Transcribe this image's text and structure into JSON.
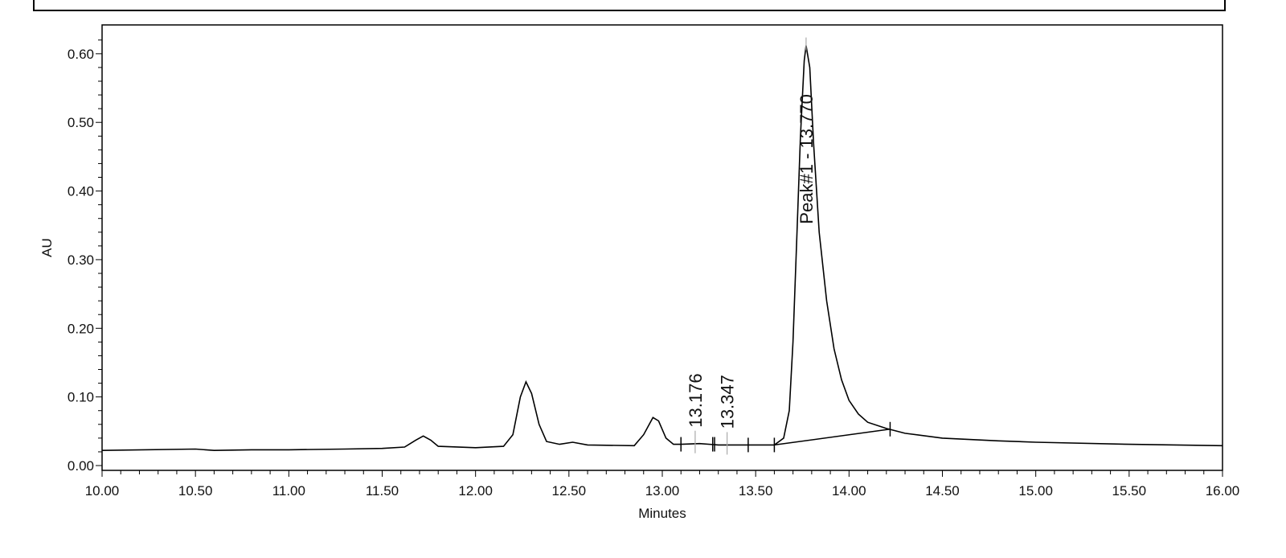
{
  "chart_data": {
    "type": "line",
    "xlabel": "Minutes",
    "ylabel": "AU",
    "xlim": [
      10,
      16
    ],
    "ylim": [
      -0.007,
      0.642
    ],
    "xticks": [
      {
        "value": 10,
        "label": "10.00"
      },
      {
        "value": 10.5,
        "label": "10.50"
      },
      {
        "value": 11,
        "label": "11.00"
      },
      {
        "value": 11.5,
        "label": "11.50"
      },
      {
        "value": 12,
        "label": "12.00"
      },
      {
        "value": 12.5,
        "label": "12.50"
      },
      {
        "value": 13,
        "label": "13.00"
      },
      {
        "value": 13.5,
        "label": "13.50"
      },
      {
        "value": 14,
        "label": "14.00"
      },
      {
        "value": 14.5,
        "label": "14.50"
      },
      {
        "value": 15,
        "label": "15.00"
      },
      {
        "value": 15.5,
        "label": "15.50"
      },
      {
        "value": 16,
        "label": "16.00"
      }
    ],
    "yticks": [
      {
        "value": 0,
        "label": "0.00"
      },
      {
        "value": 0.1,
        "label": "0.10"
      },
      {
        "value": 0.2,
        "label": "0.20"
      },
      {
        "value": 0.3,
        "label": "0.30"
      },
      {
        "value": 0.4,
        "label": "0.40"
      },
      {
        "value": 0.5,
        "label": "0.50"
      },
      {
        "value": 0.6,
        "label": "0.60"
      }
    ],
    "xminorticks": [
      10.1,
      10.2,
      10.3,
      10.4,
      10.6,
      10.7,
      10.8,
      10.9,
      11.1,
      11.2,
      11.3,
      11.4,
      11.6,
      11.7,
      11.8,
      11.9,
      12.1,
      12.2,
      12.3,
      12.4,
      12.6,
      12.7,
      12.8,
      12.9,
      13.1,
      13.2,
      13.3,
      13.4,
      13.6,
      13.7,
      13.8,
      13.9,
      14.1,
      14.2,
      14.3,
      14.4,
      14.6,
      14.7,
      14.8,
      14.9,
      15.1,
      15.2,
      15.3,
      15.4,
      15.6,
      15.7,
      15.8,
      15.9
    ],
    "yminorticks": [
      0.02,
      0.04,
      0.06,
      0.08,
      0.12,
      0.14,
      0.16,
      0.18,
      0.22,
      0.24,
      0.26,
      0.28,
      0.32,
      0.34,
      0.36,
      0.38,
      0.42,
      0.44,
      0.46,
      0.48,
      0.52,
      0.54,
      0.56,
      0.58,
      0.62
    ],
    "series": [
      {
        "color": "#000000",
        "x": [
          10.0,
          10.5,
          10.6,
          10.8,
          11.0,
          11.3,
          11.5,
          11.62,
          11.68,
          11.72,
          11.76,
          11.8,
          12.0,
          12.15,
          12.2,
          12.24,
          12.27,
          12.3,
          12.34,
          12.38,
          12.45,
          12.52,
          12.6,
          12.85,
          12.9,
          12.95,
          12.98,
          13.02,
          13.06,
          13.1,
          13.2,
          13.3,
          13.45,
          13.6,
          13.65,
          13.68,
          13.7,
          13.72,
          13.74,
          13.76,
          13.77,
          13.79,
          13.81,
          13.84,
          13.88,
          13.92,
          13.96,
          14.0,
          14.05,
          14.1,
          14.2,
          14.3,
          14.5,
          14.8,
          15.0,
          15.5,
          16.0
        ],
        "values": [
          0.022,
          0.024,
          0.022,
          0.023,
          0.023,
          0.024,
          0.025,
          0.027,
          0.037,
          0.043,
          0.037,
          0.028,
          0.026,
          0.028,
          0.045,
          0.1,
          0.122,
          0.105,
          0.06,
          0.035,
          0.031,
          0.034,
          0.03,
          0.029,
          0.045,
          0.07,
          0.065,
          0.04,
          0.031,
          0.031,
          0.032,
          0.03,
          0.03,
          0.03,
          0.04,
          0.08,
          0.18,
          0.33,
          0.48,
          0.59,
          0.612,
          0.58,
          0.47,
          0.34,
          0.24,
          0.17,
          0.125,
          0.095,
          0.075,
          0.063,
          0.054,
          0.047,
          0.04,
          0.036,
          0.034,
          0.031,
          0.029
        ]
      }
    ],
    "baseline": {
      "color": "#000000",
      "x": [
        13.6,
        14.22
      ],
      "values": [
        0.03,
        0.053
      ]
    },
    "integration_marks": {
      "x": [
        13.1,
        13.27,
        13.28,
        13.46,
        13.6,
        14.22
      ],
      "values": [
        0.031,
        0.031,
        0.031,
        0.03,
        0.03,
        0.053
      ]
    },
    "annotations": [
      {
        "text": "13.176",
        "x": 13.176,
        "y": 0.032
      },
      {
        "text": "13.347",
        "x": 13.347,
        "y": 0.03
      },
      {
        "text": "Peak#1 - 13.770",
        "x": 13.77,
        "y": 0.612
      }
    ]
  }
}
